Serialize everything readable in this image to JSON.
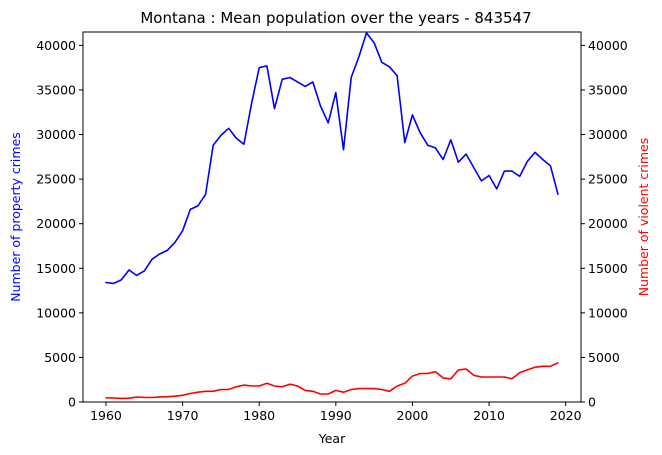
{
  "chart_data": {
    "type": "line",
    "title": "Montana : Mean population over the years - 843547",
    "xlabel": "Year",
    "ylabel_left": "Number of property crimes",
    "ylabel_right": "Number of violent crimes",
    "xlim": [
      1957,
      2022
    ],
    "ylim": [
      0,
      41500
    ],
    "x_ticks": [
      1960,
      1970,
      1980,
      1990,
      2000,
      2010,
      2020
    ],
    "y_ticks": [
      0,
      5000,
      10000,
      15000,
      20000,
      25000,
      30000,
      35000,
      40000
    ],
    "grid": false,
    "colors": {
      "left_axis": "#0000ff",
      "right_axis": "#ff0000"
    },
    "x": [
      1960,
      1961,
      1962,
      1963,
      1964,
      1965,
      1966,
      1967,
      1968,
      1969,
      1970,
      1971,
      1972,
      1973,
      1974,
      1975,
      1976,
      1977,
      1978,
      1979,
      1980,
      1981,
      1982,
      1983,
      1984,
      1985,
      1986,
      1987,
      1988,
      1989,
      1990,
      1991,
      1992,
      1993,
      1994,
      1995,
      1996,
      1997,
      1998,
      1999,
      2000,
      2001,
      2002,
      2003,
      2004,
      2005,
      2006,
      2007,
      2008,
      2009,
      2010,
      2011,
      2012,
      2013,
      2014,
      2015,
      2016,
      2017,
      2018,
      2019
    ],
    "series": [
      {
        "color": "#0000ff",
        "axis": "left",
        "values": [
          13400,
          13300,
          13700,
          14800,
          14200,
          14700,
          16000,
          16600,
          17000,
          17900,
          19200,
          21600,
          22000,
          23300,
          28800,
          29900,
          30700,
          29600,
          28900,
          33500,
          37500,
          37700,
          32900,
          36200,
          36400,
          35900,
          35400,
          35900,
          33200,
          31300,
          34700,
          28300,
          36400,
          38700,
          41400,
          40300,
          38100,
          37600,
          36600,
          29100,
          32200,
          30200,
          28800,
          28500,
          27200,
          29400,
          26900,
          27800,
          26300,
          24800,
          25400,
          23900,
          25900,
          25900,
          25300,
          27000,
          28000,
          27200,
          26500,
          23300
        ]
      },
      {
        "color": "#ff0000",
        "axis": "right",
        "values": [
          470,
          450,
          400,
          420,
          560,
          520,
          510,
          570,
          600,
          650,
          750,
          950,
          1100,
          1200,
          1200,
          1400,
          1400,
          1700,
          1900,
          1800,
          1800,
          2100,
          1800,
          1700,
          2000,
          1800,
          1300,
          1200,
          900,
          900,
          1300,
          1100,
          1400,
          1500,
          1500,
          1500,
          1400,
          1200,
          1800,
          2100,
          2900,
          3200,
          3200,
          3400,
          2700,
          2600,
          3600,
          3700,
          3000,
          2800,
          2800,
          2800,
          2800,
          2600,
          3300,
          3600,
          3900,
          4000,
          4000,
          4400
        ]
      }
    ]
  }
}
